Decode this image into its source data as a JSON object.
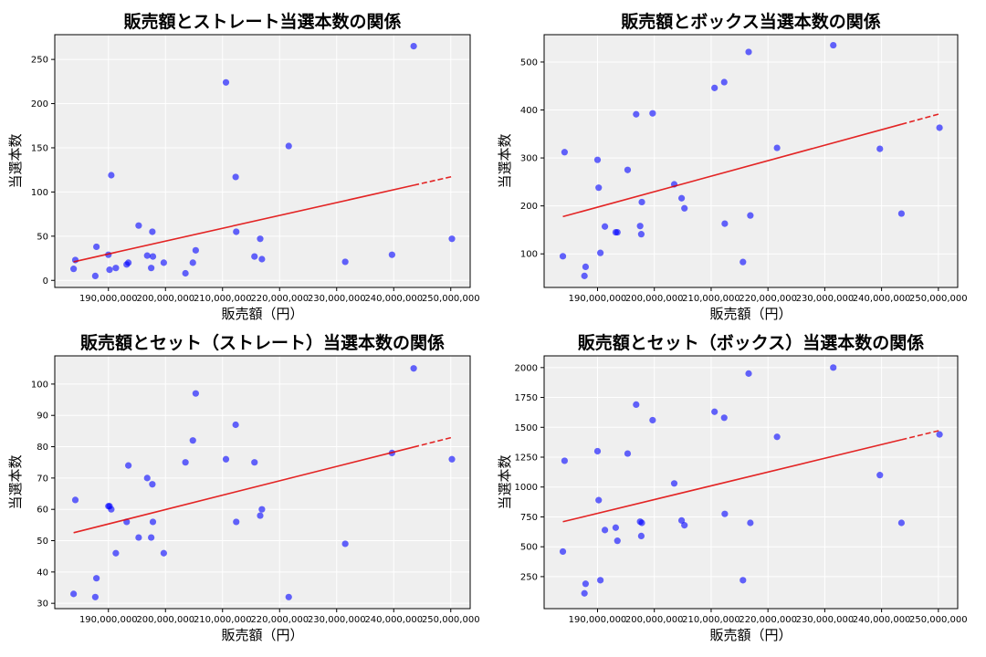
{
  "chart_data": [
    {
      "type": "scatter",
      "title": "販売額とストレート当選本数の関係",
      "xlabel": "販売額（円）",
      "ylabel": "当選本数",
      "xlim": [
        180600000,
        253400000
      ],
      "ylim": [
        -8,
        278
      ],
      "xticks": [
        190000000,
        200000000,
        210000000,
        220000000,
        230000000,
        240000000,
        250000000
      ],
      "xtick_labels": [
        "190,000,000",
        "200,000,000",
        "210,000,000",
        "220,000,000",
        "230,000,000",
        "240,000,000",
        "250,000,000"
      ],
      "yticks": [
        0,
        50,
        100,
        150,
        200,
        250
      ],
      "grid": true,
      "trendline": true,
      "x": [
        183900000,
        184200000,
        187700000,
        187900000,
        190000000,
        190200000,
        190500000,
        191300000,
        193200000,
        193500000,
        195300000,
        196800000,
        197500000,
        197700000,
        197800000,
        199700000,
        203500000,
        204800000,
        205300000,
        210600000,
        212300000,
        212400000,
        215600000,
        216600000,
        216900000,
        221600000,
        231500000,
        239700000,
        243500000,
        250200000
      ],
      "y": [
        13,
        23,
        5,
        38,
        29,
        12,
        119,
        14,
        18,
        20,
        62,
        28,
        14,
        55,
        27,
        20,
        8,
        20,
        34,
        224,
        117,
        55,
        27,
        47,
        24,
        152,
        21,
        29,
        265,
        47
      ]
    },
    {
      "type": "scatter",
      "title": "販売額とボックス当選本数の関係",
      "xlabel": "販売額（円）",
      "ylabel": "当選本数",
      "xlim": [
        180600000,
        253400000
      ],
      "ylim": [
        30,
        557
      ],
      "xticks": [
        190000000,
        200000000,
        210000000,
        220000000,
        230000000,
        240000000,
        250000000
      ],
      "xtick_labels": [
        "190,000,000",
        "200,000,000",
        "210,000,000",
        "220,000,000",
        "230,000,000",
        "240,000,000",
        "250,000,000"
      ],
      "yticks": [
        100,
        200,
        300,
        400,
        500
      ],
      "grid": true,
      "trendline": true,
      "x": [
        183900000,
        184200000,
        187700000,
        187900000,
        190000000,
        190200000,
        190500000,
        191300000,
        193200000,
        193500000,
        195300000,
        196800000,
        197500000,
        197700000,
        197800000,
        199700000,
        203500000,
        204800000,
        205300000,
        210600000,
        212300000,
        212400000,
        215600000,
        216600000,
        216900000,
        221600000,
        231500000,
        239700000,
        243500000,
        250200000
      ],
      "y": [
        95,
        312,
        54,
        73,
        296,
        238,
        102,
        157,
        145,
        145,
        275,
        391,
        158,
        141,
        208,
        393,
        245,
        216,
        195,
        446,
        458,
        163,
        83,
        521,
        180,
        321,
        535,
        319,
        184,
        363
      ]
    },
    {
      "type": "scatter",
      "title": "販売額とセット（ストレート）当選本数の関係",
      "xlabel": "販売額（円）",
      "ylabel": "当選本数",
      "xlim": [
        180600000,
        253400000
      ],
      "ylim": [
        28.3,
        109
      ],
      "xticks": [
        190000000,
        200000000,
        210000000,
        220000000,
        230000000,
        240000000,
        250000000
      ],
      "xtick_labels": [
        "190,000,000",
        "200,000,000",
        "210,000,000",
        "220,000,000",
        "230,000,000",
        "240,000,000",
        "250,000,000"
      ],
      "yticks": [
        30,
        40,
        50,
        60,
        70,
        80,
        90,
        100
      ],
      "grid": true,
      "trendline": true,
      "x": [
        183900000,
        184200000,
        187700000,
        187900000,
        190000000,
        190200000,
        190500000,
        191300000,
        193200000,
        193500000,
        195300000,
        196800000,
        197500000,
        197700000,
        197800000,
        199700000,
        203500000,
        204800000,
        205300000,
        210600000,
        212300000,
        212400000,
        215600000,
        216600000,
        216900000,
        221600000,
        231500000,
        239700000,
        243500000,
        250200000
      ],
      "y": [
        33,
        63,
        32,
        38,
        61,
        61,
        60,
        46,
        56,
        74,
        51,
        70,
        51,
        68,
        56,
        46,
        75,
        82,
        97,
        76,
        87,
        56,
        75,
        58,
        60,
        32,
        49,
        78,
        105,
        76
      ]
    },
    {
      "type": "scatter",
      "title": "販売額とセット（ボックス）当選本数の関係",
      "xlabel": "販売額（円）",
      "ylabel": "当選本数",
      "xlim": [
        180600000,
        253400000
      ],
      "ylim": [
        -18,
        2098
      ],
      "xticks": [
        190000000,
        200000000,
        210000000,
        220000000,
        230000000,
        240000000,
        250000000
      ],
      "xtick_labels": [
        "190,000,000",
        "200,000,000",
        "210,000,000",
        "220,000,000",
        "230,000,000",
        "240,000,000",
        "250,000,000"
      ],
      "yticks": [
        250,
        500,
        750,
        1000,
        1250,
        1500,
        1750,
        2000
      ],
      "grid": true,
      "trendline": true,
      "x": [
        183900000,
        184200000,
        187700000,
        187900000,
        190000000,
        190200000,
        190500000,
        191300000,
        193200000,
        193500000,
        195300000,
        196800000,
        197500000,
        197700000,
        197800000,
        199700000,
        203500000,
        204800000,
        205300000,
        210600000,
        212300000,
        212400000,
        215600000,
        216600000,
        216900000,
        221600000,
        231500000,
        239700000,
        243500000,
        250200000
      ],
      "y": [
        460,
        1220,
        110,
        190,
        1300,
        890,
        220,
        640,
        660,
        550,
        1280,
        1690,
        710,
        590,
        700,
        1560,
        1030,
        720,
        680,
        1630,
        1580,
        775,
        220,
        1950,
        700,
        1420,
        2000,
        1100,
        700,
        1440
      ]
    }
  ],
  "colors": {
    "point": "#0000ff",
    "trendline": "#e00000",
    "axes_background": "#efefef",
    "grid": "#ffffff"
  }
}
